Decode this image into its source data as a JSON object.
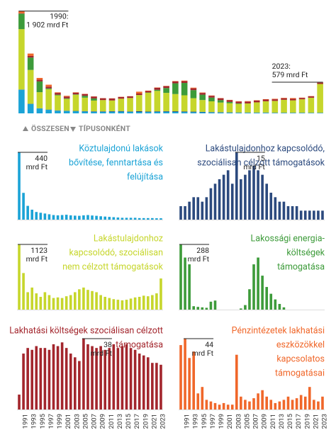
{
  "chart_data": {
    "type": "bar",
    "stacked": true,
    "categories": [
      null,
      "1991",
      null,
      "1993",
      null,
      "1995",
      null,
      "1997",
      null,
      "1999",
      null,
      "2001",
      null,
      "2003",
      null,
      "2005",
      null,
      "2007",
      null,
      "2009",
      null,
      "2011",
      null,
      "2013",
      null,
      "2015",
      null,
      "2017",
      null,
      "2019",
      null,
      "2021",
      null,
      "2023"
    ],
    "ylim": [
      0,
      1950
    ],
    "annotations": [
      {
        "lines": [
          "1990:",
          "1 902 mrd Ft"
        ]
      },
      {
        "lines": [
          "2023:",
          "579 mrd Ft"
        ]
      }
    ],
    "toggle": [
      "ÖSSZESEN",
      "TÍPUSONKÉNT"
    ],
    "series": [
      {
        "name": [
          "Köztulajdonú lakások",
          "bővítése, fenntartása és",
          "felújítása"
        ],
        "color": "#1ba3d6",
        "ylim": [
          0,
          440
        ],
        "annotation": [
          "440",
          "mrd Ft"
        ],
        "values": [
          440,
          175,
          90,
          65,
          50,
          45,
          40,
          35,
          30,
          28,
          30,
          32,
          28,
          26,
          25,
          28,
          30,
          27,
          25,
          22,
          20,
          18,
          16,
          14,
          12,
          12,
          12,
          12,
          10,
          10,
          10,
          10,
          9,
          9
        ]
      },
      {
        "name": [
          "Lakástulajdonhoz kapcsolódó,",
          "szociálisan célzott támogatások"
        ],
        "color": "#2c4a7e",
        "ylim": [
          0,
          15
        ],
        "annotation": [
          "15",
          "mrd Ft"
        ],
        "values": [
          3,
          3,
          4,
          5,
          5,
          4,
          5,
          7,
          8,
          9,
          10,
          11,
          8,
          15,
          9,
          10,
          11,
          12,
          11,
          10,
          8,
          6,
          5,
          4,
          4,
          3,
          3,
          3,
          2,
          2,
          2,
          2,
          2,
          2
        ]
      },
      {
        "name": [
          "Lakástulajdonhoz",
          "kapcsolódó, szociálisan",
          "nem célzott támogatások"
        ],
        "color": "#c6d62c",
        "ylim": [
          0,
          1123
        ],
        "annotation": [
          "1123",
          "mrd Ft"
        ],
        "values": [
          1123,
          630,
          300,
          380,
          280,
          220,
          300,
          250,
          200,
          210,
          200,
          230,
          250,
          300,
          350,
          380,
          340,
          320,
          300,
          250,
          220,
          200,
          180,
          170,
          160,
          170,
          190,
          210,
          220,
          240,
          230,
          250,
          280,
          536
        ]
      },
      {
        "name": [
          "Lakossági energia-",
          "költségek",
          "támogatása"
        ],
        "color": "#3d9b3a",
        "ylim": [
          0,
          288
        ],
        "annotation": [
          "288",
          "mrd Ft"
        ],
        "values": [
          288,
          230,
          200,
          15,
          12,
          10,
          8,
          35,
          40,
          0,
          0,
          0,
          0,
          0,
          5,
          20,
          90,
          200,
          230,
          150,
          100,
          70,
          45,
          25,
          10,
          0,
          0,
          0,
          0,
          0,
          0,
          0,
          0,
          0
        ]
      },
      {
        "name": [
          "Lakhatási költségek szociálisan célzott",
          "támogatása"
        ],
        "color": "#a3262d",
        "ylim": [
          0,
          38
        ],
        "annotation": [
          "38",
          "mrd Ft"
        ],
        "values": [
          8,
          30,
          33,
          32,
          34,
          33,
          33,
          32,
          35,
          34,
          36,
          33,
          30,
          28,
          26,
          38,
          35,
          34,
          33,
          34,
          32,
          33,
          35,
          33,
          34,
          35,
          33,
          32,
          30,
          29,
          28,
          25,
          25,
          24
        ]
      },
      {
        "name": [
          "Pénzintézetek lakhatási",
          "eszközökkel",
          "kapcsolatos",
          "támogatásai"
        ],
        "color": "#f0672a",
        "ylim": [
          0,
          44
        ],
        "annotation": [
          "44",
          "mrd Ft"
        ],
        "values": [
          40,
          44,
          32,
          36,
          10,
          14,
          6,
          5,
          4,
          3,
          4,
          3,
          3,
          34,
          8,
          6,
          5,
          7,
          10,
          12,
          8,
          6,
          4,
          5,
          6,
          8,
          6,
          7,
          9,
          8,
          14,
          6,
          5,
          8
        ]
      }
    ]
  }
}
